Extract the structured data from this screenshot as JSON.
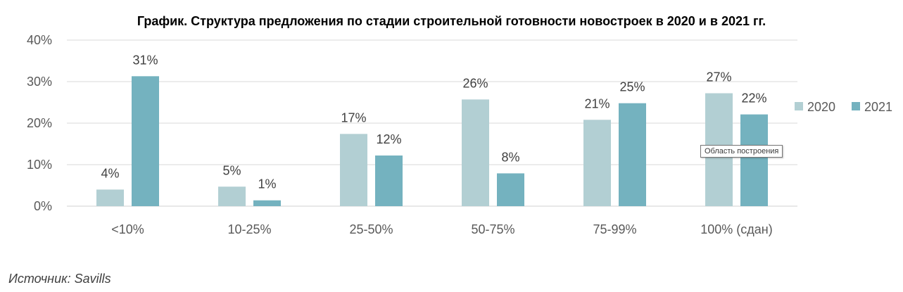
{
  "chart_data": {
    "type": "bar",
    "title": "График. Структура предложения по стадии строительной готовности новостроек в 2020 и в 2021 гг.",
    "categories": [
      "<10%",
      "10-25%",
      "25-50%",
      "50-75%",
      "75-99%",
      "100% (сдан)"
    ],
    "series": [
      {
        "name": "2020",
        "values": [
          4,
          5,
          17,
          26,
          21,
          27
        ],
        "labels": [
          "4%",
          "5%",
          "17%",
          "26%",
          "21%",
          "27%"
        ],
        "color": "#b2cfd3"
      },
      {
        "name": "2021",
        "values": [
          31,
          1,
          12,
          8,
          25,
          22
        ],
        "labels": [
          "31%",
          "1%",
          "12%",
          "8%",
          "25%",
          "22%"
        ],
        "color": "#74b2bf"
      }
    ],
    "bar_values_precise": {
      "2020": [
        4.0,
        4.7,
        17.4,
        25.7,
        20.8,
        27.2
      ],
      "2021": [
        31.3,
        1.4,
        12.2,
        7.9,
        24.8,
        22.1
      ]
    },
    "y_ticks": [
      "0%",
      "10%",
      "20%",
      "30%",
      "40%"
    ],
    "ylim": [
      0,
      40
    ],
    "grid": true,
    "legend_position": "right"
  },
  "source": "Источник: Savills",
  "tooltip": "Область построения"
}
